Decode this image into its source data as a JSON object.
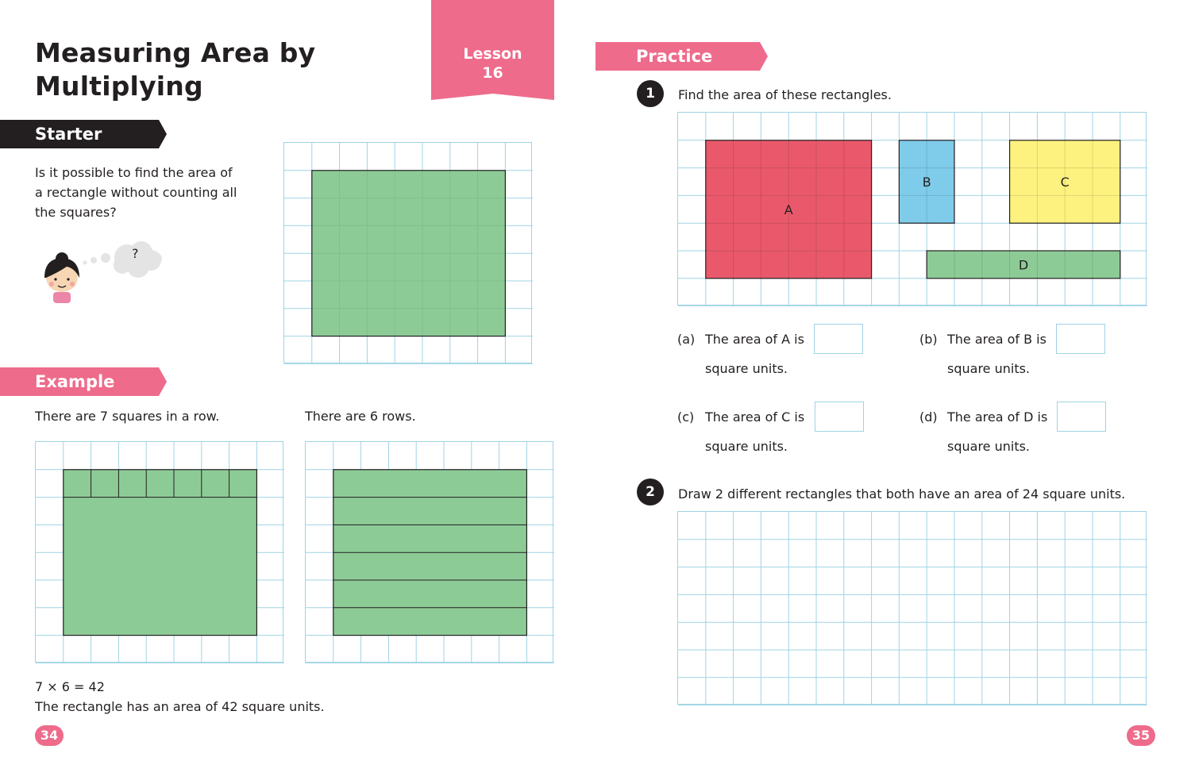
{
  "page_title": "Measuring Area by Multiplying",
  "page_title_line1": "Measuring Area by",
  "page_title_line2": "Multiplying",
  "lesson": {
    "label": "Lesson",
    "number": "16"
  },
  "starter": {
    "heading": "Starter",
    "question_line1": "Is it possible to find the area of",
    "question_line2": "a rectangle without counting all",
    "question_line3": "the squares?",
    "thought": "?"
  },
  "example": {
    "heading": "Example",
    "row_text": "There are 7 squares in a row.",
    "rows_text": "There are 6 rows.",
    "equation": "7 × 6 = 42",
    "conclusion": "The rectangle has an area of 42 square units."
  },
  "practice": {
    "heading": "Practice",
    "q1": {
      "number": "1",
      "prompt": "Find the area of these rectangles.",
      "shapes": [
        {
          "label": "A",
          "color": "#e9596b",
          "cols": 6,
          "rows": 5
        },
        {
          "label": "B",
          "color": "#7fcbea",
          "cols": 2,
          "rows": 3
        },
        {
          "label": "C",
          "color": "#fdf27f",
          "cols": 4,
          "rows": 3
        },
        {
          "label": "D",
          "color": "#8dcb96",
          "cols": 7,
          "rows": 1
        }
      ],
      "parts": [
        {
          "tag": "(a)",
          "text": "The area of A is",
          "unit": "square units."
        },
        {
          "tag": "(b)",
          "text": "The area of B is",
          "unit": "square units."
        },
        {
          "tag": "(c)",
          "text": "The area of C is",
          "unit": "square units."
        },
        {
          "tag": "(d)",
          "text": "The area of D is",
          "unit": "square units."
        }
      ]
    },
    "q2": {
      "number": "2",
      "prompt": "Draw 2 different rectangles that both have an area of 24 square units."
    }
  },
  "page_numbers": {
    "left": "34",
    "right": "35"
  },
  "colors": {
    "pink": "#ee6b8b",
    "dark": "#231f20",
    "grid": "#9fd4e4",
    "green": "#8dcb96",
    "red": "#e9596b",
    "blue": "#7fcbea",
    "yellow": "#fdf27f"
  }
}
